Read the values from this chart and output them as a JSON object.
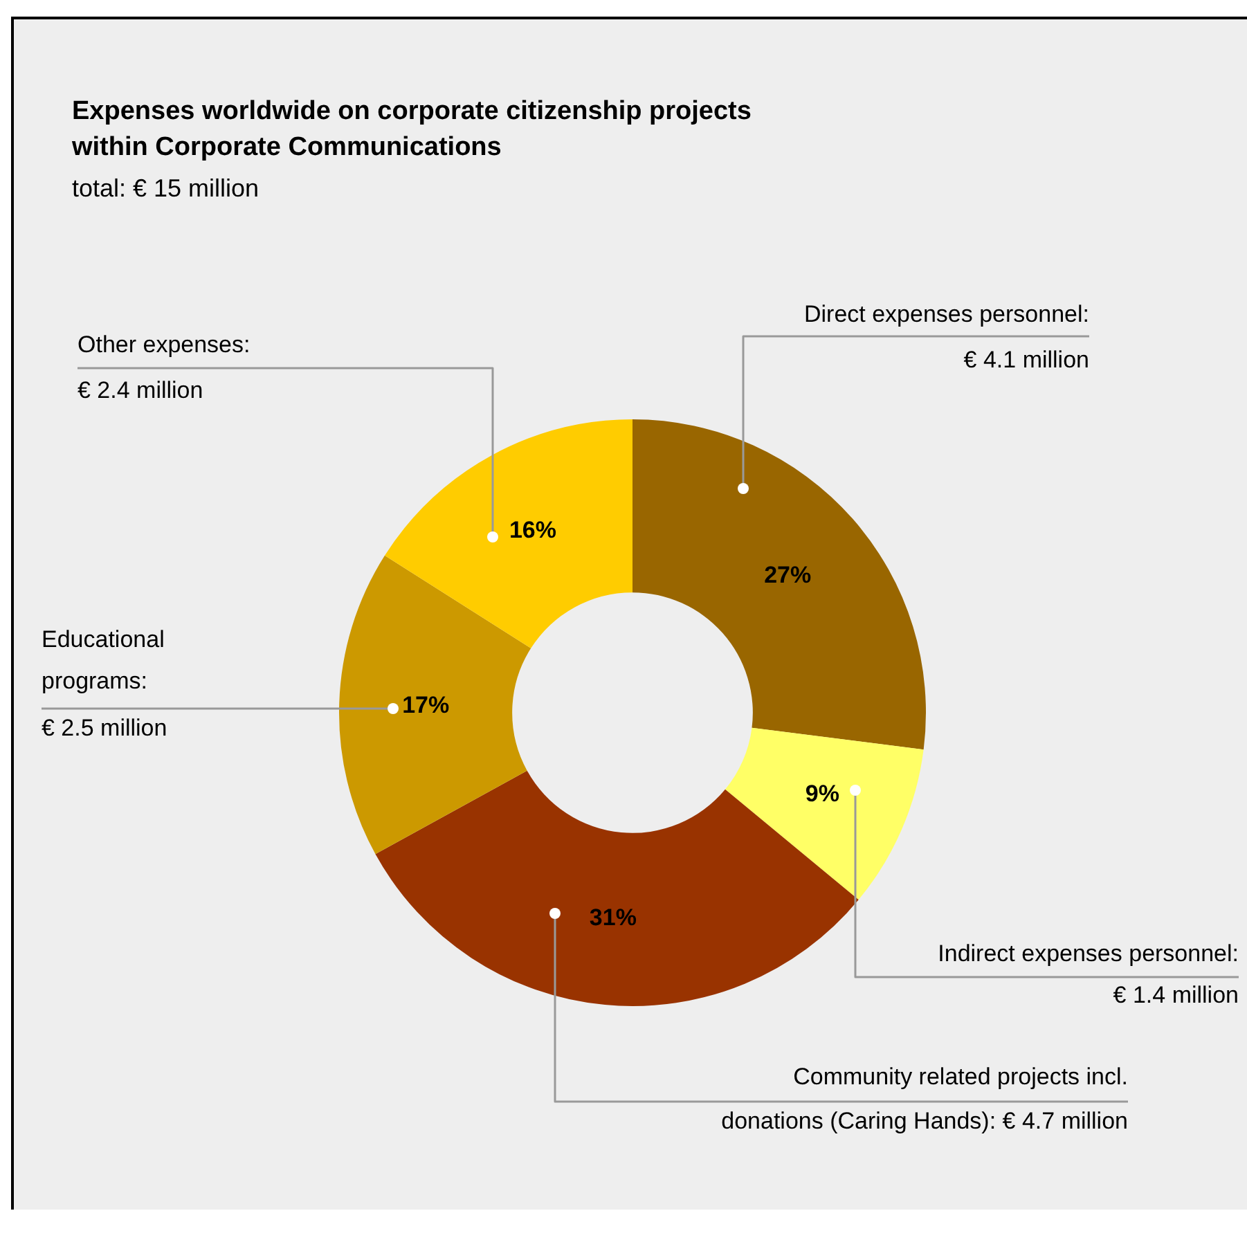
{
  "chart_data": {
    "type": "donut",
    "title": "Expenses worldwide on corporate citizenship projects\nwithin Corporate Communications",
    "subtitle": "total: € 15 million",
    "categories": [
      "Direct expenses personnel:\n€ 4.1 million",
      "Indirect expenses personnel:\n€ 1.4 million",
      "Community related projects incl.\ndonations (Caring Hands): € 4.7 million",
      "Educational\nprograms:\n€ 2.5 million",
      "Other expenses:\n€ 2.4 million"
    ],
    "values": [
      27,
      9,
      31,
      17,
      16
    ],
    "colors": [
      "#996600",
      "#ffff66",
      "#993300",
      "#cc9900",
      "#ffcc00"
    ],
    "value_labels": [
      "27%",
      "9%",
      "31%",
      "17%",
      "16%"
    ],
    "legend": false
  }
}
